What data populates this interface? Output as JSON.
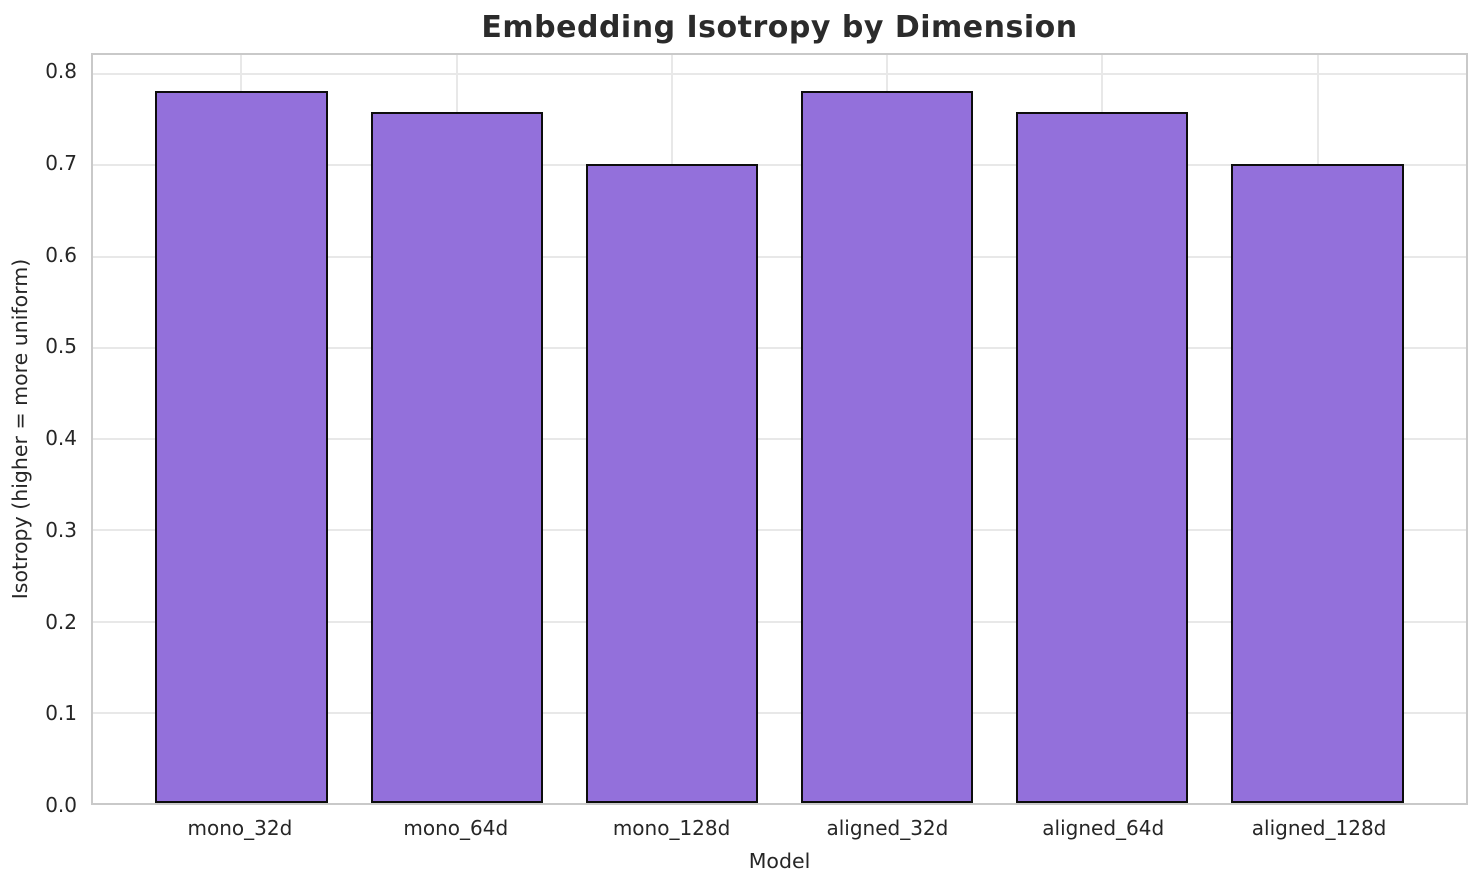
{
  "chart_data": {
    "type": "bar",
    "title": "Embedding Isotropy by Dimension",
    "xlabel": "Model",
    "ylabel": "Isotropy (higher = more uniform)",
    "categories": [
      "mono_32d",
      "mono_64d",
      "mono_128d",
      "aligned_32d",
      "aligned_64d",
      "aligned_128d"
    ],
    "values": [
      0.781,
      0.758,
      0.701,
      0.781,
      0.758,
      0.701
    ],
    "ylim": [
      0,
      0.82
    ],
    "yticks": [
      0.0,
      0.1,
      0.2,
      0.3,
      0.4,
      0.5,
      0.6,
      0.7,
      0.8
    ],
    "ytick_labels": [
      "0.0",
      "0.1",
      "0.2",
      "0.3",
      "0.4",
      "0.5",
      "0.6",
      "0.7",
      "0.8"
    ],
    "grid": true,
    "grid_axes": "both",
    "legend": "none",
    "bar_width_fraction": 0.8,
    "colors": {
      "bar_fill": "#9370DB",
      "bar_edge": "#0d0d0d",
      "grid": "#e8e8e8",
      "spine": "#c9c9c9",
      "text": "#262626",
      "title_text": "#2b2b2b",
      "background": "#ffffff"
    }
  }
}
